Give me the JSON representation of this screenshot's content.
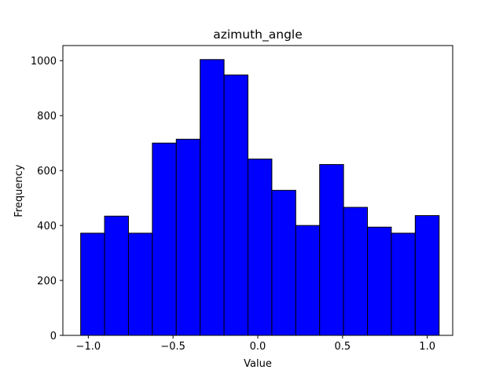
{
  "chart_data": {
    "type": "bar",
    "title": "azimuth_angle",
    "xlabel": "Value",
    "ylabel": "Frequency",
    "bin_edges": [
      -1.045,
      -0.904,
      -0.763,
      -0.622,
      -0.481,
      -0.34,
      -0.199,
      -0.058,
      0.083,
      0.224,
      0.365,
      0.506,
      0.647,
      0.788,
      0.929,
      1.07
    ],
    "values": [
      372,
      434,
      372,
      700,
      714,
      1004,
      948,
      642,
      528,
      400,
      622,
      466,
      394,
      372,
      436
    ],
    "xlim": [
      -1.15,
      1.15
    ],
    "ylim": [
      0,
      1055
    ],
    "xticks": [
      -1.0,
      -0.5,
      0.0,
      0.5,
      1.0
    ],
    "xtick_labels": [
      "−1.0",
      "−0.5",
      "0.0",
      "0.5",
      "1.0"
    ],
    "yticks": [
      0,
      200,
      400,
      600,
      800,
      1000
    ],
    "ytick_labels": [
      "0",
      "200",
      "400",
      "600",
      "800",
      "1000"
    ],
    "bar_color": "#0000ff",
    "edge_color": "#000000",
    "grid": false,
    "legend": "none"
  }
}
